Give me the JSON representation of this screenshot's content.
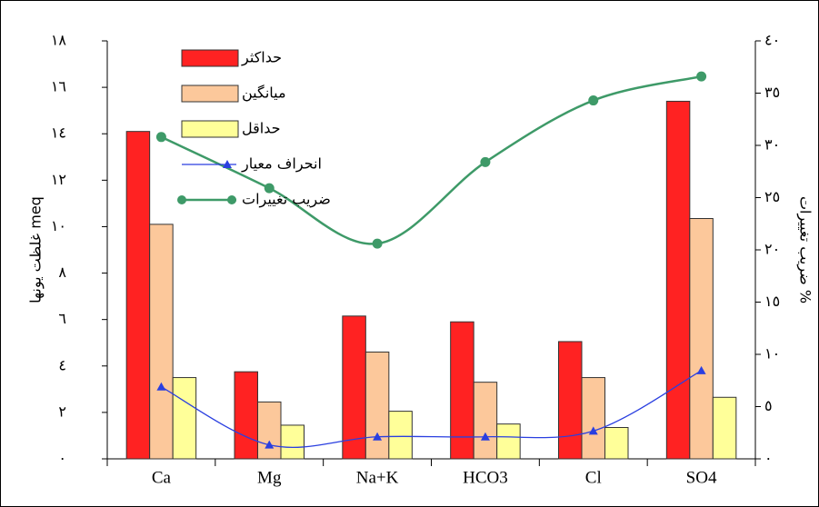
{
  "chart_data": {
    "type": "bar",
    "y_label": "غلظت یونها meq",
    "y2_label": "ضریب تغییرات %",
    "categories": [
      "Ca",
      "Mg",
      "Na+K",
      "HCO3",
      "Cl",
      "SO4"
    ],
    "series": [
      {
        "name": "حداکثر",
        "color": "#ff2222",
        "values": [
          14.1,
          3.75,
          6.15,
          5.9,
          5.05,
          15.4
        ]
      },
      {
        "name": "میانگین",
        "color": "#fcc89b",
        "values": [
          10.1,
          2.45,
          4.6,
          3.3,
          3.5,
          10.35
        ]
      },
      {
        "name": "حداقل",
        "color": "#ffff99",
        "values": [
          3.5,
          1.45,
          2.05,
          1.5,
          1.35,
          2.65
        ]
      },
      {
        "name": "انحراف معیار",
        "type": "line",
        "color": "#2a3fe0",
        "marker": "triangle",
        "values": [
          3.1,
          0.6,
          0.95,
          0.95,
          1.2,
          3.8
        ]
      },
      {
        "name": "ضریب تغییرات",
        "type": "line",
        "axis": "y2",
        "color": "#3e9a68",
        "marker": "circle",
        "values": [
          30.8,
          25.9,
          20.6,
          28.4,
          34.3,
          36.6
        ]
      }
    ],
    "ylim": [
      0,
      18
    ],
    "yticks": [
      {
        "value": 0,
        "label": "٠"
      },
      {
        "value": 2,
        "label": "٢"
      },
      {
        "value": 4,
        "label": "٤"
      },
      {
        "value": 6,
        "label": "٦"
      },
      {
        "value": 8,
        "label": "٨"
      },
      {
        "value": 10,
        "label": "١٠"
      },
      {
        "value": 12,
        "label": "١٢"
      },
      {
        "value": 14,
        "label": "١٤"
      },
      {
        "value": 16,
        "label": "١٦"
      },
      {
        "value": 18,
        "label": "١٨"
      }
    ],
    "y2lim": [
      0,
      40
    ],
    "y2ticks": [
      {
        "value": 0,
        "label": "٠"
      },
      {
        "value": 5,
        "label": "٥"
      },
      {
        "value": 10,
        "label": "١٠"
      },
      {
        "value": 15,
        "label": "١٥"
      },
      {
        "value": 20,
        "label": "٢٠"
      },
      {
        "value": 25,
        "label": "٢٥"
      },
      {
        "value": 30,
        "label": "٣٠"
      },
      {
        "value": 35,
        "label": "٣٥"
      },
      {
        "value": 40,
        "label": "٤٠"
      }
    ]
  }
}
